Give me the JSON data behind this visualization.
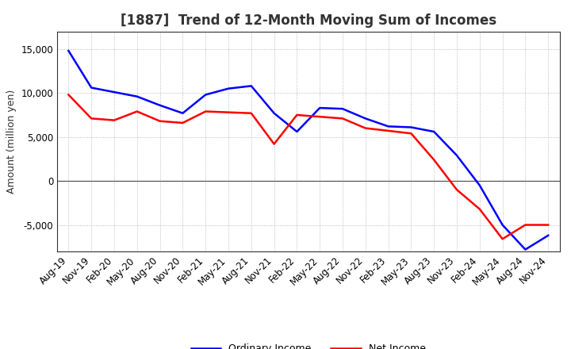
{
  "title": "[1887]  Trend of 12-Month Moving Sum of Incomes",
  "ylabel": "Amount (million yen)",
  "x_labels": [
    "Aug-19",
    "Nov-19",
    "Feb-20",
    "May-20",
    "Aug-20",
    "Nov-20",
    "Feb-21",
    "May-21",
    "Aug-21",
    "Nov-21",
    "Feb-22",
    "May-22",
    "Aug-22",
    "Nov-22",
    "Feb-23",
    "May-23",
    "Aug-23",
    "Nov-23",
    "Feb-24",
    "May-24",
    "Aug-24",
    "Nov-24"
  ],
  "ordinary_income": [
    14800,
    10600,
    10100,
    9600,
    8600,
    7700,
    9800,
    10500,
    10800,
    7700,
    5600,
    8300,
    8200,
    7100,
    6200,
    6100,
    5600,
    2900,
    -500,
    -5000,
    -7800,
    -6200
  ],
  "net_income": [
    9800,
    7100,
    6900,
    7900,
    6800,
    6600,
    7900,
    7800,
    7700,
    4200,
    7500,
    7300,
    7100,
    6000,
    5700,
    5400,
    2400,
    -1000,
    -3200,
    -6600,
    -5000,
    -5000
  ],
  "ordinary_income_color": "#0000FF",
  "net_income_color": "#FF0000",
  "background_color": "#FFFFFF",
  "plot_bg_color": "#FFFFFF",
  "grid_color": "#AAAAAA",
  "ylim": [
    -8000,
    17000
  ],
  "yticks": [
    -5000,
    0,
    5000,
    10000,
    15000
  ],
  "legend_labels": [
    "Ordinary Income",
    "Net Income"
  ],
  "title_fontsize": 12,
  "axis_fontsize": 9,
  "tick_fontsize": 8.5,
  "line_width": 1.8,
  "title_color": "#333333"
}
